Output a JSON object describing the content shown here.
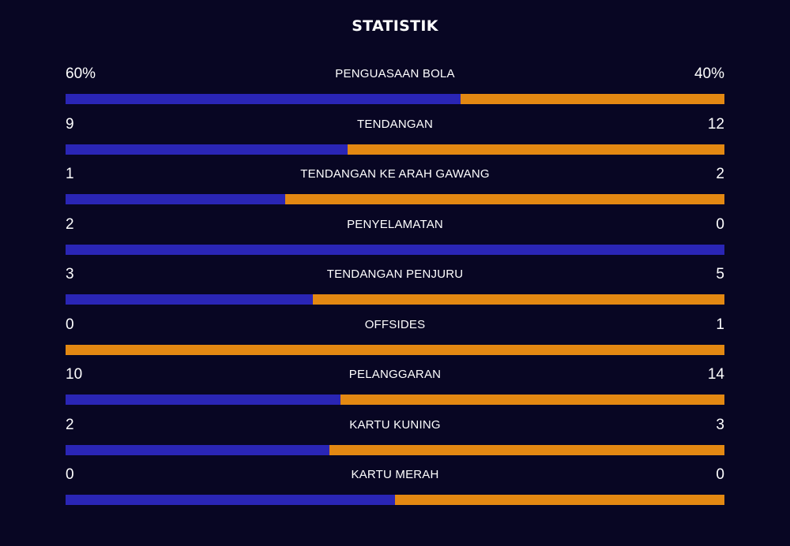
{
  "title": "STATISTIK",
  "colors": {
    "background": "#080623",
    "home": "#2a25b5",
    "away": "#e38812"
  },
  "stats": [
    {
      "label": "PENGUASAAN BOLA",
      "home": "60%",
      "away": "40%",
      "home_share": 0.6
    },
    {
      "label": "TENDANGAN",
      "home": "9",
      "away": "12",
      "home_share": 0.4286
    },
    {
      "label": "TENDANGAN KE ARAH GAWANG",
      "home": "1",
      "away": "2",
      "home_share": 0.3333
    },
    {
      "label": "PENYELAMATAN",
      "home": "2",
      "away": "0",
      "home_share": 1.0
    },
    {
      "label": "TENDANGAN PENJURU",
      "home": "3",
      "away": "5",
      "home_share": 0.375
    },
    {
      "label": "OFFSIDES",
      "home": "0",
      "away": "1",
      "home_share": 0.0
    },
    {
      "label": "PELANGGARAN",
      "home": "10",
      "away": "14",
      "home_share": 0.4167
    },
    {
      "label": "KARTU KUNING",
      "home": "2",
      "away": "3",
      "home_share": 0.4
    },
    {
      "label": "KARTU MERAH",
      "home": "0",
      "away": "0",
      "home_share": 0.5
    }
  ]
}
